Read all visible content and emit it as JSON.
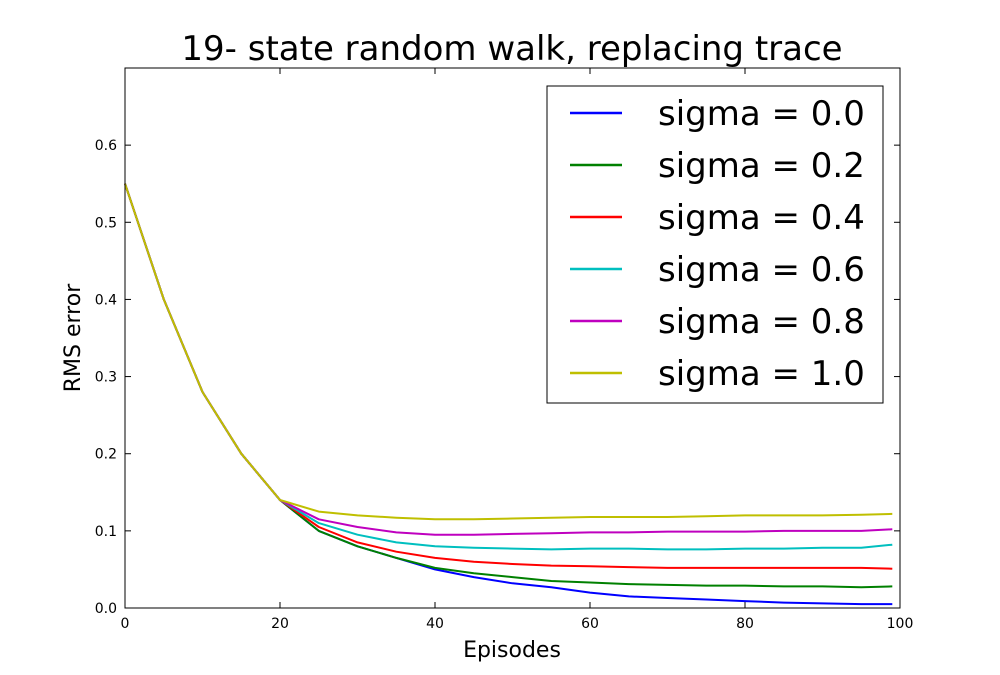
{
  "chart_data": {
    "type": "line",
    "title": "19- state random walk, replacing trace",
    "xlabel": "Episodes",
    "ylabel": "RMS error",
    "xlim": [
      0,
      100
    ],
    "ylim": [
      0,
      0.7
    ],
    "xticks": [
      0,
      20,
      40,
      60,
      80,
      100
    ],
    "yticks": [
      0.0,
      0.1,
      0.2,
      0.3,
      0.4,
      0.5,
      0.6
    ],
    "ytick_labels": [
      "0.0",
      "0.1",
      "0.2",
      "0.3",
      "0.4",
      "0.5",
      "0.6"
    ],
    "legend_position": "top-right",
    "series": [
      {
        "name": "sigma = 0.0",
        "color": "#0000ff",
        "values": [
          [
            0,
            0.55
          ],
          [
            5,
            0.4
          ],
          [
            10,
            0.28
          ],
          [
            15,
            0.2
          ],
          [
            20,
            0.14
          ],
          [
            25,
            0.1
          ],
          [
            30,
            0.08
          ],
          [
            35,
            0.065
          ],
          [
            40,
            0.05
          ],
          [
            45,
            0.04
          ],
          [
            50,
            0.032
          ],
          [
            55,
            0.027
          ],
          [
            60,
            0.02
          ],
          [
            65,
            0.015
          ],
          [
            70,
            0.013
          ],
          [
            75,
            0.011
          ],
          [
            80,
            0.009
          ],
          [
            85,
            0.007
          ],
          [
            90,
            0.006
          ],
          [
            95,
            0.005
          ],
          [
            99,
            0.005
          ]
        ]
      },
      {
        "name": "sigma = 0.2",
        "color": "#008000",
        "values": [
          [
            0,
            0.55
          ],
          [
            5,
            0.4
          ],
          [
            10,
            0.28
          ],
          [
            15,
            0.2
          ],
          [
            20,
            0.14
          ],
          [
            25,
            0.1
          ],
          [
            30,
            0.08
          ],
          [
            35,
            0.065
          ],
          [
            40,
            0.052
          ],
          [
            45,
            0.045
          ],
          [
            50,
            0.04
          ],
          [
            55,
            0.035
          ],
          [
            60,
            0.033
          ],
          [
            65,
            0.031
          ],
          [
            70,
            0.03
          ],
          [
            75,
            0.029
          ],
          [
            80,
            0.029
          ],
          [
            85,
            0.028
          ],
          [
            90,
            0.028
          ],
          [
            95,
            0.027
          ],
          [
            99,
            0.028
          ]
        ]
      },
      {
        "name": "sigma = 0.4",
        "color": "#ff0000",
        "values": [
          [
            0,
            0.55
          ],
          [
            5,
            0.4
          ],
          [
            10,
            0.28
          ],
          [
            15,
            0.2
          ],
          [
            20,
            0.14
          ],
          [
            25,
            0.105
          ],
          [
            30,
            0.085
          ],
          [
            35,
            0.073
          ],
          [
            40,
            0.065
          ],
          [
            45,
            0.06
          ],
          [
            50,
            0.057
          ],
          [
            55,
            0.055
          ],
          [
            60,
            0.054
          ],
          [
            65,
            0.053
          ],
          [
            70,
            0.052
          ],
          [
            75,
            0.052
          ],
          [
            80,
            0.052
          ],
          [
            85,
            0.052
          ],
          [
            90,
            0.052
          ],
          [
            95,
            0.052
          ],
          [
            99,
            0.051
          ]
        ]
      },
      {
        "name": "sigma = 0.6",
        "color": "#00bfbf",
        "values": [
          [
            0,
            0.55
          ],
          [
            5,
            0.4
          ],
          [
            10,
            0.28
          ],
          [
            15,
            0.2
          ],
          [
            20,
            0.14
          ],
          [
            25,
            0.11
          ],
          [
            30,
            0.095
          ],
          [
            35,
            0.085
          ],
          [
            40,
            0.08
          ],
          [
            45,
            0.078
          ],
          [
            50,
            0.077
          ],
          [
            55,
            0.076
          ],
          [
            60,
            0.077
          ],
          [
            65,
            0.077
          ],
          [
            70,
            0.076
          ],
          [
            75,
            0.076
          ],
          [
            80,
            0.077
          ],
          [
            85,
            0.077
          ],
          [
            90,
            0.078
          ],
          [
            95,
            0.078
          ],
          [
            99,
            0.082
          ]
        ]
      },
      {
        "name": "sigma = 0.8",
        "color": "#bf00bf",
        "values": [
          [
            0,
            0.55
          ],
          [
            5,
            0.4
          ],
          [
            10,
            0.28
          ],
          [
            15,
            0.2
          ],
          [
            20,
            0.14
          ],
          [
            25,
            0.115
          ],
          [
            30,
            0.105
          ],
          [
            35,
            0.098
          ],
          [
            40,
            0.095
          ],
          [
            45,
            0.095
          ],
          [
            50,
            0.096
          ],
          [
            55,
            0.097
          ],
          [
            60,
            0.098
          ],
          [
            65,
            0.098
          ],
          [
            70,
            0.099
          ],
          [
            75,
            0.099
          ],
          [
            80,
            0.099
          ],
          [
            85,
            0.1
          ],
          [
            90,
            0.1
          ],
          [
            95,
            0.1
          ],
          [
            99,
            0.102
          ]
        ]
      },
      {
        "name": "sigma = 1.0",
        "color": "#bfbf00",
        "values": [
          [
            0,
            0.55
          ],
          [
            5,
            0.4
          ],
          [
            10,
            0.28
          ],
          [
            15,
            0.2
          ],
          [
            20,
            0.14
          ],
          [
            25,
            0.125
          ],
          [
            30,
            0.12
          ],
          [
            35,
            0.117
          ],
          [
            40,
            0.115
          ],
          [
            45,
            0.115
          ],
          [
            50,
            0.116
          ],
          [
            55,
            0.117
          ],
          [
            60,
            0.118
          ],
          [
            65,
            0.118
          ],
          [
            70,
            0.118
          ],
          [
            75,
            0.119
          ],
          [
            80,
            0.12
          ],
          [
            85,
            0.12
          ],
          [
            90,
            0.12
          ],
          [
            95,
            0.121
          ],
          [
            99,
            0.122
          ]
        ]
      }
    ]
  }
}
